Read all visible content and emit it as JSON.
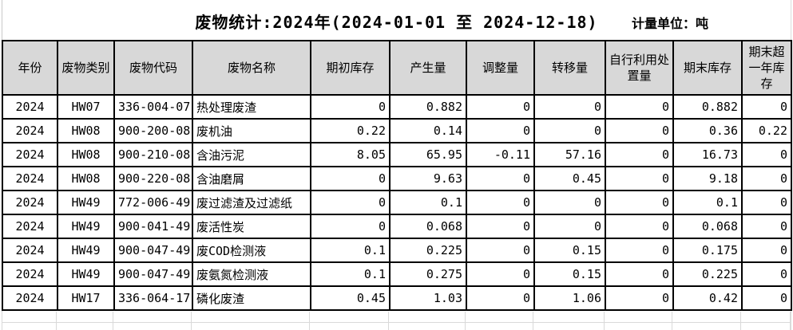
{
  "header": {
    "title": "废物统计:2024年(2024-01-01 至 2024-12-18)",
    "unit_label": "计量单位：吨"
  },
  "table": {
    "columns": [
      "年份",
      "废物类别",
      "废物代码",
      "废物名称",
      "期初库存",
      "产生量",
      "调整量",
      "转移量",
      "自行利用处置量",
      "期末库存",
      "期末超一年库存"
    ],
    "rows": [
      [
        "2024",
        "HW07",
        "336-004-07",
        "热处理废渣",
        "0",
        "0.882",
        "0",
        "0",
        "0",
        "0.882",
        "0"
      ],
      [
        "2024",
        "HW08",
        "900-200-08",
        "废机油",
        "0.22",
        "0.14",
        "0",
        "0",
        "0",
        "0.36",
        "0.22"
      ],
      [
        "2024",
        "HW08",
        "900-210-08",
        "含油污泥",
        "8.05",
        "65.95",
        "-0.11",
        "57.16",
        "0",
        "16.73",
        "0"
      ],
      [
        "2024",
        "HW08",
        "900-220-08",
        "含油磨屑",
        "0",
        "9.63",
        "0",
        "0.45",
        "0",
        "9.18",
        "0"
      ],
      [
        "2024",
        "HW49",
        "772-006-49",
        "废过滤渣及过滤纸",
        "0",
        "0.1",
        "0",
        "0",
        "0",
        "0.1",
        "0"
      ],
      [
        "2024",
        "HW49",
        "900-041-49",
        "废活性炭",
        "0",
        "0.068",
        "0",
        "0",
        "0",
        "0.068",
        "0"
      ],
      [
        "2024",
        "HW49",
        "900-047-49",
        "废COD检测液",
        "0.1",
        "0.225",
        "0",
        "0.15",
        "0",
        "0.175",
        "0"
      ],
      [
        "2024",
        "HW49",
        "900-047-49",
        "废氨氮检测液",
        "0.1",
        "0.275",
        "0",
        "0.15",
        "0",
        "0.225",
        "0"
      ],
      [
        "2024",
        "HW17",
        "336-064-17",
        "磷化废渣",
        "0.45",
        "1.03",
        "0",
        "1.06",
        "0",
        "0.42",
        "0"
      ]
    ]
  }
}
